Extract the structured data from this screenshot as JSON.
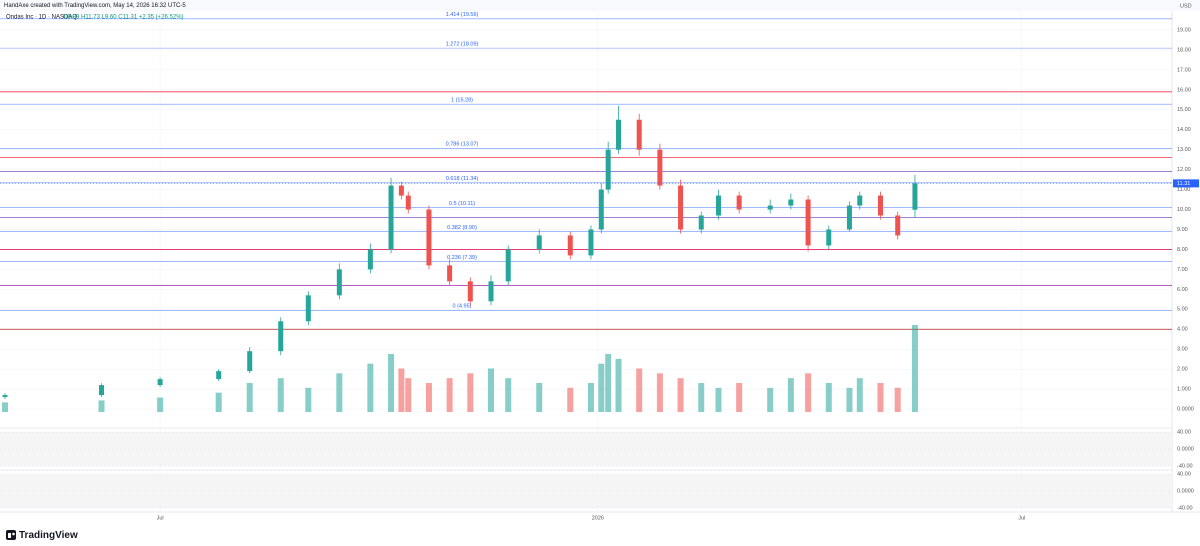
{
  "header": {
    "credit": "HandAxe created with TradingView.com, May 14, 2026 16:32 UTC-5",
    "symbol": "Ondas Inc · 1D · NASDAQ",
    "ohlc": "O9.99 H11.73 L9.60 C11.31 +2.35 (+26.52%)",
    "currency": "USD",
    "logo": "TradingView"
  },
  "chart_data": {
    "type": "candlestick",
    "xlim": [
      -45,
      293
    ],
    "xticks": [
      {
        "value": 0,
        "label": "Jul"
      },
      {
        "value": 127,
        "label": "2026"
      },
      {
        "value": 250,
        "label": "Jul"
      }
    ],
    "ylim": [
      -0.9,
      19.9
    ],
    "yticks": [
      {
        "value": 19,
        "label": "19.00"
      },
      {
        "value": 18,
        "label": "18.00"
      },
      {
        "value": 17,
        "label": "17.00"
      },
      {
        "value": 16,
        "label": "16.00"
      },
      {
        "value": 15,
        "label": "15.00"
      },
      {
        "value": 14,
        "label": "14.00"
      },
      {
        "value": 13,
        "label": "13.00"
      },
      {
        "value": 12,
        "label": "12.00"
      },
      {
        "value": 11,
        "label": "11.00"
      },
      {
        "value": 10,
        "label": "10.00"
      },
      {
        "value": 9,
        "label": "9.00"
      },
      {
        "value": 8,
        "label": "8.00"
      },
      {
        "value": 7,
        "label": "7.00"
      },
      {
        "value": 6,
        "label": "6.00"
      },
      {
        "value": 5,
        "label": "5.00"
      },
      {
        "value": 4,
        "label": "4.00"
      },
      {
        "value": 3,
        "label": "3.00"
      },
      {
        "value": 2,
        "label": "2.00"
      },
      {
        "value": 1,
        "label": "1.000"
      },
      {
        "value": 0,
        "label": "0.0000"
      }
    ],
    "grid": true,
    "up_color": "#26a69a",
    "down_color": "#ef5350",
    "x": [
      -45,
      -17,
      0,
      17,
      26,
      35,
      43,
      52,
      61,
      67,
      70,
      72,
      78,
      84,
      90,
      96,
      101,
      110,
      119,
      125,
      128,
      130,
      133,
      139,
      145,
      151,
      157,
      162,
      168,
      177,
      183,
      188,
      194,
      200,
      203,
      209,
      214,
      219
    ],
    "open": [
      0.6,
      0.7,
      1.2,
      1.5,
      1.9,
      2.9,
      4.4,
      5.7,
      7,
      8,
      11.2,
      10.7,
      10,
      7.2,
      6.4,
      5.4,
      6.4,
      8,
      8.7,
      7.7,
      9,
      11,
      13,
      14.5,
      13,
      11.2,
      9,
      9.7,
      10.7,
      10,
      10.2,
      10.5,
      8.2,
      9,
      10.2,
      10.7,
      9.7,
      9.99
    ],
    "high": [
      0.8,
      1.3,
      1.6,
      2.0,
      3.1,
      4.6,
      5.9,
      7.3,
      8.3,
      11.6,
      11.4,
      10.9,
      10.2,
      7.5,
      6.6,
      6.7,
      8.2,
      9.0,
      8.9,
      9.2,
      11.3,
      13.4,
      15.2,
      14.8,
      13.3,
      11.5,
      9.9,
      11.0,
      10.9,
      10.5,
      10.8,
      10.7,
      9.2,
      10.4,
      10.9,
      10.9,
      9.9,
      11.73
    ],
    "low": [
      0.5,
      0.6,
      1.1,
      1.4,
      1.8,
      2.7,
      4.2,
      5.5,
      6.8,
      7.8,
      10.5,
      9.8,
      7.0,
      6.2,
      5.2,
      5.2,
      6.2,
      7.8,
      7.5,
      7.5,
      8.8,
      10.8,
      12.8,
      12.7,
      11.0,
      8.8,
      8.8,
      9.5,
      9.8,
      9.8,
      10.0,
      7.9,
      8.0,
      8.9,
      10.0,
      9.5,
      8.5,
      9.6
    ],
    "close": [
      0.7,
      1.2,
      1.5,
      1.9,
      2.9,
      4.4,
      5.7,
      7,
      8,
      11.2,
      10.7,
      10,
      7.2,
      6.4,
      5.4,
      6.4,
      8,
      8.7,
      7.7,
      9,
      11,
      13,
      14.5,
      13,
      11.2,
      9,
      9.7,
      10.7,
      10,
      10.2,
      10.5,
      8.2,
      9,
      10.2,
      10.7,
      9.7,
      8.7,
      11.31
    ],
    "volume": [
      10,
      12,
      15,
      20,
      30,
      35,
      25,
      40,
      50,
      60,
      45,
      35,
      30,
      35,
      40,
      45,
      35,
      30,
      25,
      30,
      50,
      60,
      55,
      45,
      40,
      35,
      30,
      25,
      30,
      25,
      35,
      40,
      30,
      25,
      35,
      30,
      25,
      90
    ],
    "fib_levels": [
      {
        "label": "1.414 (19.56)",
        "value": 19.56
      },
      {
        "label": "1.272 (18.09)",
        "value": 18.09
      },
      {
        "label": "1 (15.28)",
        "value": 15.28
      },
      {
        "label": "0.786 (13.07)",
        "value": 13.07
      },
      {
        "label": "0.618 (11.34)",
        "value": 11.34
      },
      {
        "label": "0.5 (10.11)",
        "value": 10.11
      },
      {
        "label": "0.382 (8.90)",
        "value": 8.9
      },
      {
        "label": "0.236 (7.39)",
        "value": 7.39
      },
      {
        "label": "0 (4.95)",
        "value": 4.95
      }
    ],
    "fib_color": "#2962ff",
    "levels": [
      {
        "value": 15.9,
        "color": "#f23645"
      },
      {
        "value": 12.6,
        "color": "#f23645"
      },
      {
        "value": 11.9,
        "color": "#7e57c2"
      },
      {
        "value": 9.6,
        "color": "#7e57c2"
      },
      {
        "value": 8.0,
        "color": "#e91e63"
      },
      {
        "value": 6.2,
        "color": "#9c27b0"
      },
      {
        "value": 4.0,
        "color": "#b71c1c"
      }
    ],
    "last_price": 11.31,
    "oscillators": [
      {
        "yticks": [
          {
            "value": 40,
            "label": "40.00"
          },
          {
            "value": 0,
            "label": "0.0000"
          },
          {
            "value": -40,
            "label": "-40.00"
          }
        ]
      },
      {
        "yticks": [
          {
            "value": 40,
            "label": "40.00"
          },
          {
            "value": 0,
            "label": "0.0000"
          },
          {
            "value": -40,
            "label": "-40.00"
          }
        ]
      }
    ]
  }
}
